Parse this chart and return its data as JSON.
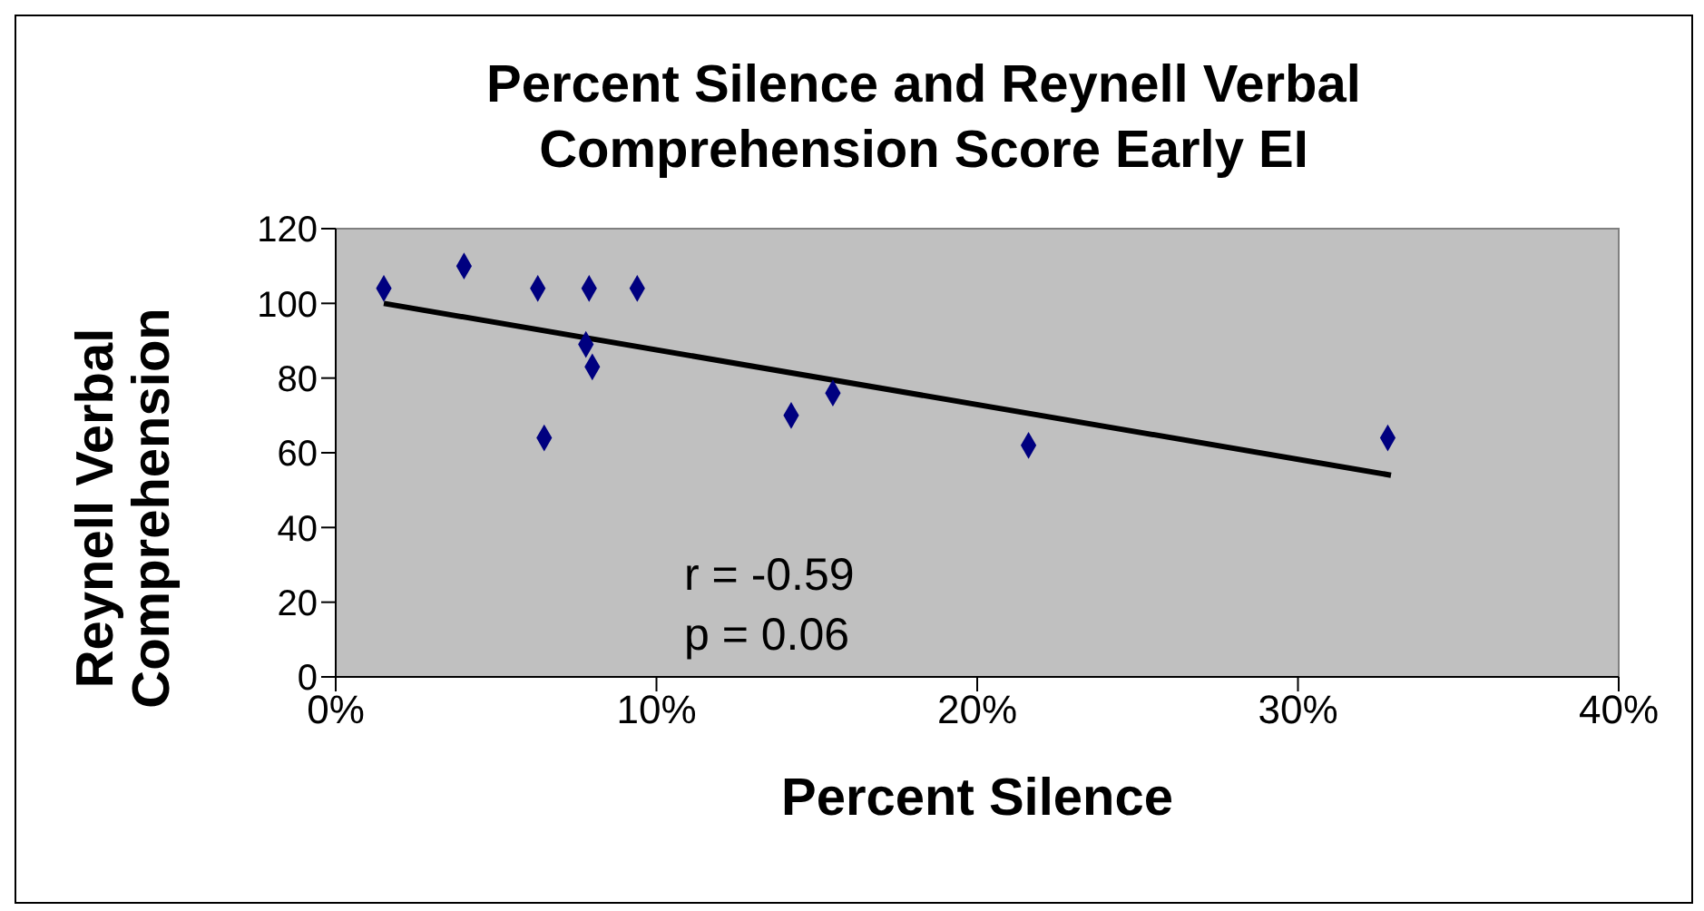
{
  "chart_data": {
    "type": "scatter",
    "title": "Percent Silence and Reynell Verbal Comprehension Score Early EI",
    "xlabel": "Percent Silence",
    "ylabel": "Reynell Verbal Comprehension",
    "xlim": [
      0,
      40
    ],
    "xticks": [
      {
        "value": 0,
        "label": "0%"
      },
      {
        "value": 10,
        "label": "10%"
      },
      {
        "value": 20,
        "label": "20%"
      },
      {
        "value": 30,
        "label": "30%"
      },
      {
        "value": 40,
        "label": "40%"
      }
    ],
    "ylim": [
      0,
      120
    ],
    "yticks": [
      0,
      20,
      40,
      60,
      80,
      100,
      120
    ],
    "legend": false,
    "marker": "diamond",
    "annotations": [
      "r = -0.59",
      "p = 0.06"
    ],
    "series": [
      {
        "color": "#000080",
        "x": [
          1.5,
          4.0,
          6.3,
          7.9,
          9.4,
          7.8,
          8.0,
          6.5,
          14.2,
          15.5,
          21.6,
          32.8
        ],
        "values": [
          104,
          110,
          104,
          104,
          104,
          89,
          83,
          64,
          70,
          76,
          62,
          64
        ]
      },
      {
        "type": "line",
        "color": "#000000",
        "x": [
          1.5,
          32.9
        ],
        "values": [
          100,
          54
        ],
        "marker": "none",
        "line_style": "solid"
      }
    ]
  }
}
